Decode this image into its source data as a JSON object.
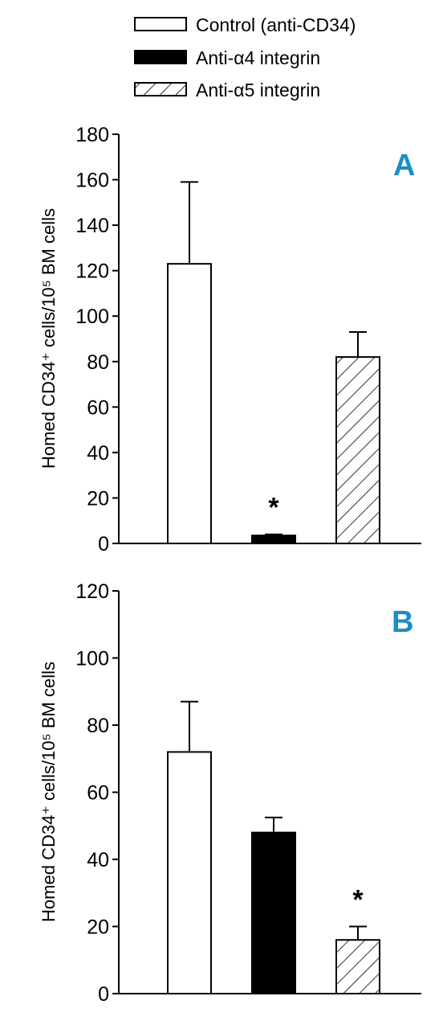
{
  "legend": [
    {
      "label": "Control (anti-CD34)",
      "fill": "white"
    },
    {
      "label": "Anti-α4 integrin",
      "fill": "black"
    },
    {
      "label": "Anti-α5 integrin",
      "fill": "hatch"
    }
  ],
  "colors": {
    "panel_letter": "#1a8fc4",
    "bar_stroke": "#000000"
  },
  "chart_data": [
    {
      "type": "bar",
      "panel": "A",
      "categories": [
        "Control (anti-CD34)",
        "Anti-α4 integrin",
        "Anti-α5 integrin"
      ],
      "values": [
        123,
        3.5,
        82
      ],
      "errors": [
        36,
        0.5,
        11
      ],
      "significance": [
        "",
        "*",
        ""
      ],
      "ylabel": "Homed CD34⁺ cells/10⁵ BM cells",
      "ylim": [
        0,
        180
      ],
      "yticks": [
        0,
        20,
        40,
        60,
        80,
        100,
        120,
        140,
        160,
        180
      ],
      "grid": false
    },
    {
      "type": "bar",
      "panel": "B",
      "categories": [
        "Control (anti-CD34)",
        "Anti-α4 integrin",
        "Anti-α5 integrin"
      ],
      "values": [
        72,
        48,
        16
      ],
      "errors": [
        15,
        4.5,
        4
      ],
      "significance": [
        "",
        "",
        "*"
      ],
      "ylabel": "Homed CD34⁺ cells/10⁵ BM cells",
      "ylim": [
        0,
        120
      ],
      "yticks": [
        0,
        20,
        40,
        60,
        80,
        100,
        120
      ],
      "grid": false
    }
  ]
}
